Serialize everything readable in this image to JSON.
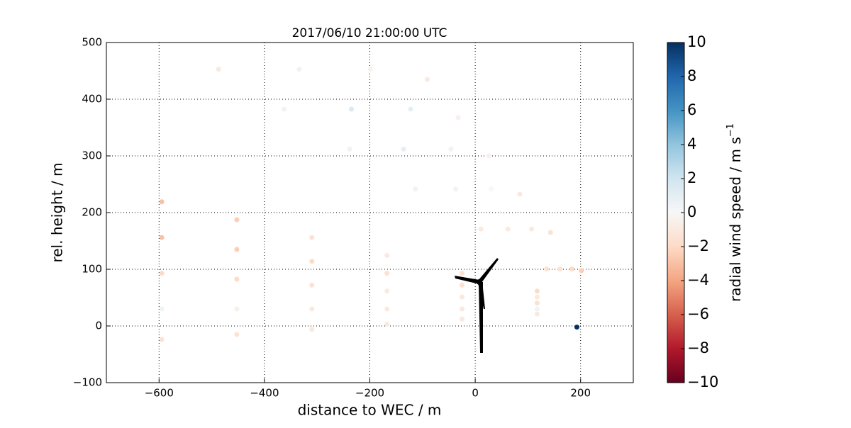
{
  "chart_data": {
    "type": "scatter",
    "title": "2017/06/10 21:00:00 UTC",
    "x_label": "distance to WEC / m",
    "y_label": "rel. height / m",
    "colorbar_label": "radial wind speed / m s",
    "colorbar_label_sup": "−1",
    "colormap": "RdBu",
    "grid": true,
    "xlim": [
      -700,
      300
    ],
    "ylim": [
      -100,
      500
    ],
    "clim": [
      -10,
      10
    ],
    "xticks": [
      {
        "value": -600,
        "label": "−600"
      },
      {
        "value": -400,
        "label": "−400"
      },
      {
        "value": -200,
        "label": "−200"
      },
      0,
      200
    ],
    "yticks": [
      {
        "value": -100,
        "label": "−100"
      },
      0,
      100,
      200,
      300,
      400,
      500
    ],
    "cticks": [
      {
        "value": -10,
        "label": "−10"
      },
      {
        "value": -8,
        "label": "−8"
      },
      {
        "value": -6,
        "label": "−6"
      },
      {
        "value": -4,
        "label": "−4"
      },
      {
        "value": -2,
        "label": "−2"
      },
      0,
      2,
      4,
      6,
      8,
      10
    ],
    "x": [
      117.5,
      -25,
      -167.5,
      -310,
      -452.5,
      -595,
      117.5,
      -25,
      -167.5,
      -310,
      -452.5,
      -595,
      117.5,
      -25,
      -167.5,
      -310,
      -452.5,
      -595,
      117.5,
      -25,
      -167.5,
      -310,
      -452.5,
      -595,
      117.5,
      -25,
      -167.5,
      -310,
      -452.5,
      -595,
      135.5,
      11,
      -113.5,
      -238,
      -362.5,
      -487,
      161,
      62,
      -37,
      -136,
      -235,
      -334,
      183.5,
      107,
      30.5,
      -46,
      -122.5,
      -199,
      201.5,
      143,
      84.5,
      26,
      -32.5,
      -91,
      193
    ],
    "y": [
      21,
      12,
      3,
      -6,
      -15,
      -24,
      30,
      30,
      30,
      30,
      30,
      30,
      40.5,
      51,
      61.5,
      72,
      82.5,
      93,
      51,
      72,
      93,
      114,
      135,
      156,
      61.5,
      93,
      124.5,
      156,
      187.5,
      219,
      100.5,
      171,
      241.5,
      312,
      382.5,
      453,
      100.5,
      171,
      241.5,
      312,
      382.5,
      453,
      100.5,
      171,
      241.5,
      312,
      382.5,
      453,
      97.5,
      165,
      232.5,
      300,
      367.5,
      435,
      -2
    ],
    "values": [
      -1,
      -1,
      -1,
      -1,
      -1.5,
      -1.5,
      0.5,
      -1,
      -1,
      -1,
      -0.5,
      0.5,
      -1.5,
      -1,
      -1,
      -1.5,
      -2,
      -2,
      -1,
      -1.5,
      -1.5,
      -2,
      -2.5,
      -3,
      -2,
      -1.5,
      -1,
      -1.5,
      -2.5,
      -3,
      -1.5,
      -1,
      -0.5,
      0.5,
      0.5,
      -1,
      -1.5,
      -1,
      0.5,
      1,
      1.5,
      0.5,
      -2,
      -1,
      0,
      0.5,
      1,
      -0.5,
      -2.5,
      -1.5,
      -1,
      -0.5,
      -0.5,
      -1,
      10
    ]
  }
}
